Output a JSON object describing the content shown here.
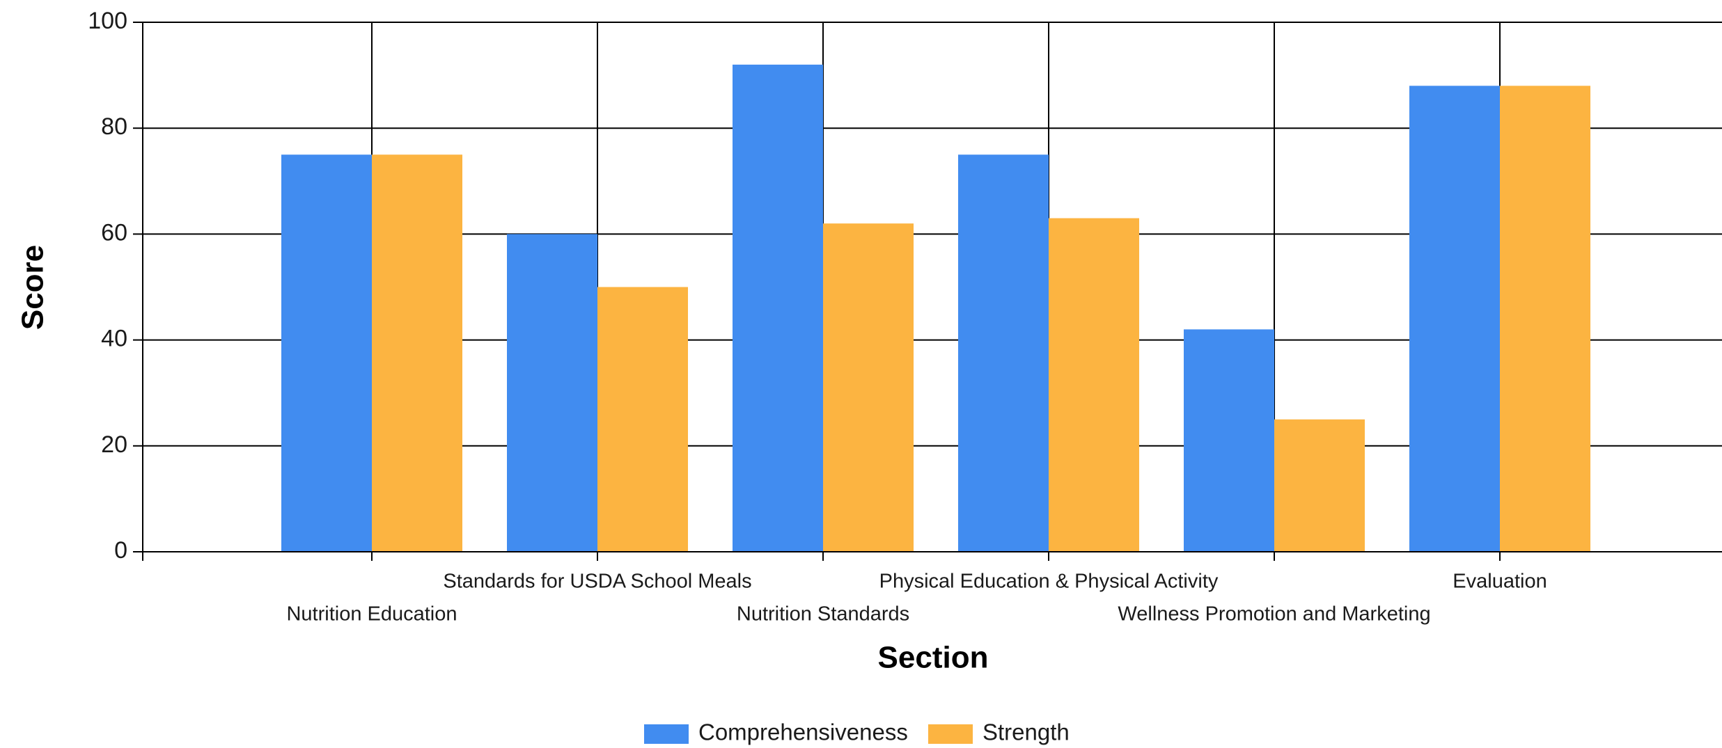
{
  "chart_data": {
    "type": "bar",
    "title": "",
    "xlabel": "Section",
    "ylabel": "Score",
    "ylim": [
      0,
      100
    ],
    "yticks": [
      0,
      20,
      40,
      60,
      80,
      100
    ],
    "grid": true,
    "legend_position": "bottom-center",
    "categories": [
      "Nutrition Education",
      "Standards for USDA School Meals",
      "Nutrition Standards",
      "Physical Education & Physical Activity",
      "Wellness Promotion and Marketing",
      "Evaluation"
    ],
    "series": [
      {
        "name": "Comprehensiveness",
        "color": "#418CF0",
        "values": [
          75,
          60,
          92,
          75,
          42,
          88
        ]
      },
      {
        "name": "Strength",
        "color": "#FCB441",
        "values": [
          75,
          50,
          62,
          63,
          25,
          88
        ]
      }
    ]
  }
}
